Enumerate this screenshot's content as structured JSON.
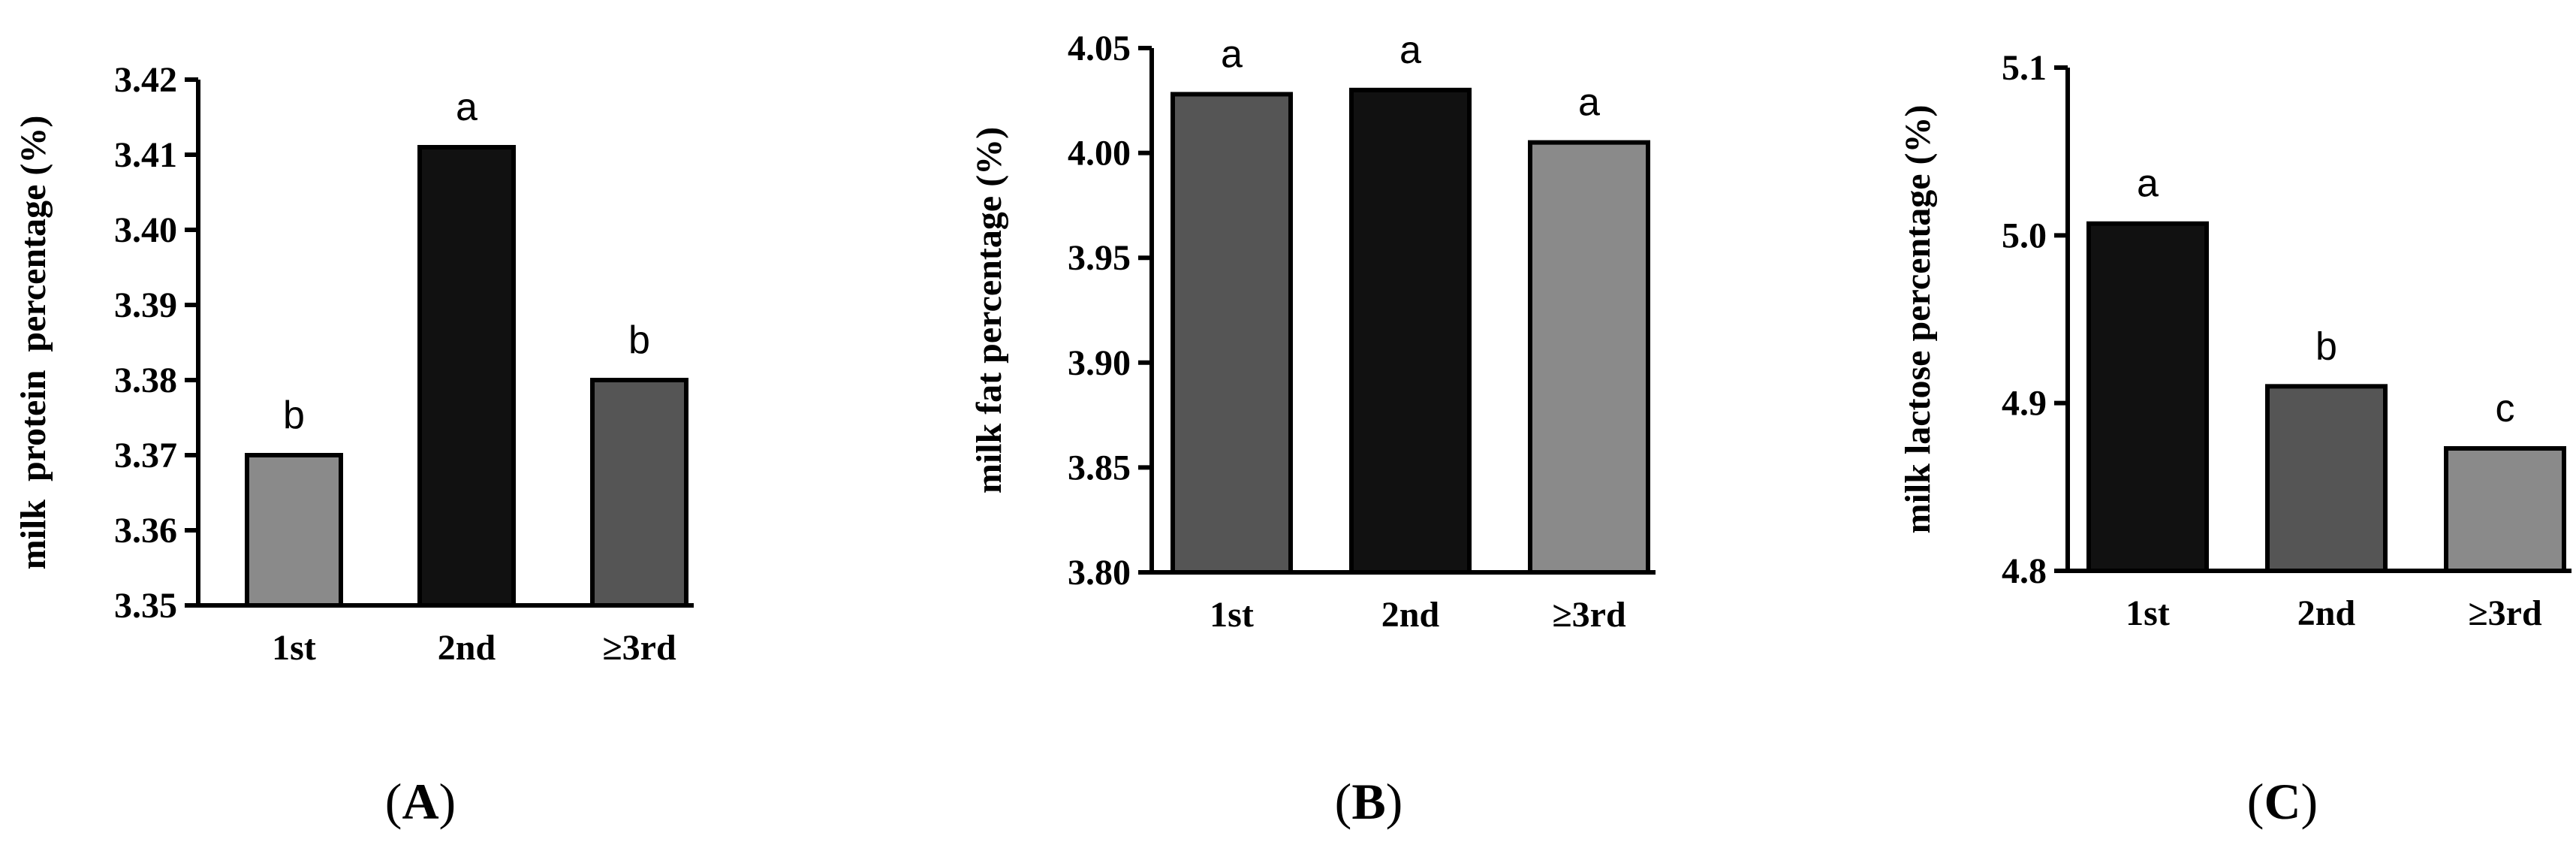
{
  "chart_data": [
    {
      "type": "bar",
      "panel_label": "A",
      "categories": [
        "1st",
        "2nd",
        "≥3rd"
      ],
      "values": [
        3.37,
        3.411,
        3.38
      ],
      "bar_colors": [
        "#8a8a8a",
        "#111111",
        "#555555"
      ],
      "significance_letters": [
        "b",
        "a",
        "b"
      ],
      "ylabel": "milk  protein  percentage (%)",
      "ylim": [
        3.35,
        3.42
      ],
      "yticks": [
        "3.35",
        "3.36",
        "3.37",
        "3.38",
        "3.39",
        "3.40",
        "3.41",
        "3.42"
      ],
      "grid": false,
      "legend": "none"
    },
    {
      "type": "bar",
      "panel_label": "B",
      "categories": [
        "1st",
        "2nd",
        "≥3rd"
      ],
      "values": [
        4.028,
        4.03,
        4.005
      ],
      "bar_colors": [
        "#555555",
        "#111111",
        "#8a8a8a"
      ],
      "significance_letters": [
        "a",
        "a",
        "a"
      ],
      "ylabel": "milk fat percentage (%)",
      "ylim": [
        3.8,
        4.05
      ],
      "yticks": [
        "3.80",
        "3.85",
        "3.90",
        "3.95",
        "4.00",
        "4.05"
      ],
      "grid": false,
      "legend": "none"
    },
    {
      "type": "bar",
      "panel_label": "C",
      "categories": [
        "1st",
        "2nd",
        "≥3rd"
      ],
      "values": [
        5.007,
        4.91,
        4.873
      ],
      "bar_colors": [
        "#111111",
        "#555555",
        "#8a8a8a"
      ],
      "significance_letters": [
        "a",
        "b",
        "c"
      ],
      "ylabel": "milk lactose percentage (%)",
      "ylim": [
        4.8,
        5.1
      ],
      "yticks": [
        "4.8",
        "4.9",
        "5.0",
        "5.1"
      ],
      "grid": false,
      "legend": "none"
    }
  ]
}
